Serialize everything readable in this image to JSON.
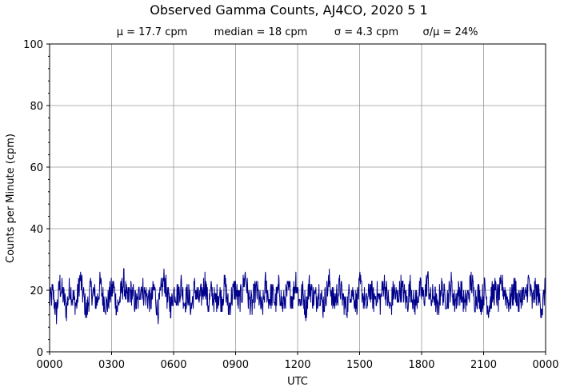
{
  "chart_data": {
    "type": "line",
    "title": "Observed Gamma Counts, AJ4CO, 2020 5 1",
    "stats": [
      "μ = 17.7 cpm",
      "median = 18 cpm",
      "σ = 4.3 cpm",
      "σ/μ = 24%"
    ],
    "xlabel": "UTC",
    "ylabel": "Counts per Minute (cpm)",
    "x_tick_labels": [
      "0000",
      "0300",
      "0600",
      "0900",
      "1200",
      "1500",
      "1800",
      "2100",
      "0000"
    ],
    "x_range_minutes": [
      0,
      1440
    ],
    "ylim": [
      0,
      100
    ],
    "y_ticks": [
      0,
      20,
      40,
      60,
      80,
      100
    ],
    "y_minor_step": 4,
    "grid": true,
    "line_color": "#00008b",
    "sampling": "one value per minute (1440 samples); representative sample shown at ~10-minute resolution",
    "series": [
      {
        "values": [
          16,
          19,
          12,
          22,
          18,
          14,
          21,
          17,
          15,
          24,
          18,
          13,
          20,
          19,
          16,
          22,
          17,
          15,
          19,
          21,
          14,
          18,
          23,
          16,
          20,
          17,
          15,
          22,
          19,
          18,
          16,
          21,
          13,
          19,
          24,
          17,
          15,
          20,
          18,
          22,
          16,
          19,
          14,
          21,
          17,
          18,
          23,
          15,
          20,
          16,
          19,
          17,
          22,
          14,
          18,
          21,
          16,
          19,
          25,
          17,
          15,
          20,
          18,
          13,
          22,
          17,
          19,
          16,
          21,
          15,
          18,
          20,
          17,
          24,
          16,
          19,
          14,
          22,
          18,
          17,
          20,
          15,
          19,
          23,
          16,
          18,
          21,
          17,
          14,
          20,
          19,
          16,
          22,
          18,
          15,
          21,
          17,
          19,
          16,
          23,
          18,
          14,
          20,
          17,
          21,
          19,
          16,
          22,
          15,
          18,
          20,
          17,
          24,
          16,
          19,
          13,
          21,
          18,
          17,
          22,
          16,
          19,
          20,
          15,
          18,
          23,
          17,
          19,
          16,
          21,
          14,
          18,
          20,
          17,
          22,
          19,
          16,
          18,
          21,
          15,
          19,
          17,
          23,
          16,
          20,
          18,
          14,
          21
        ]
      }
    ]
  }
}
